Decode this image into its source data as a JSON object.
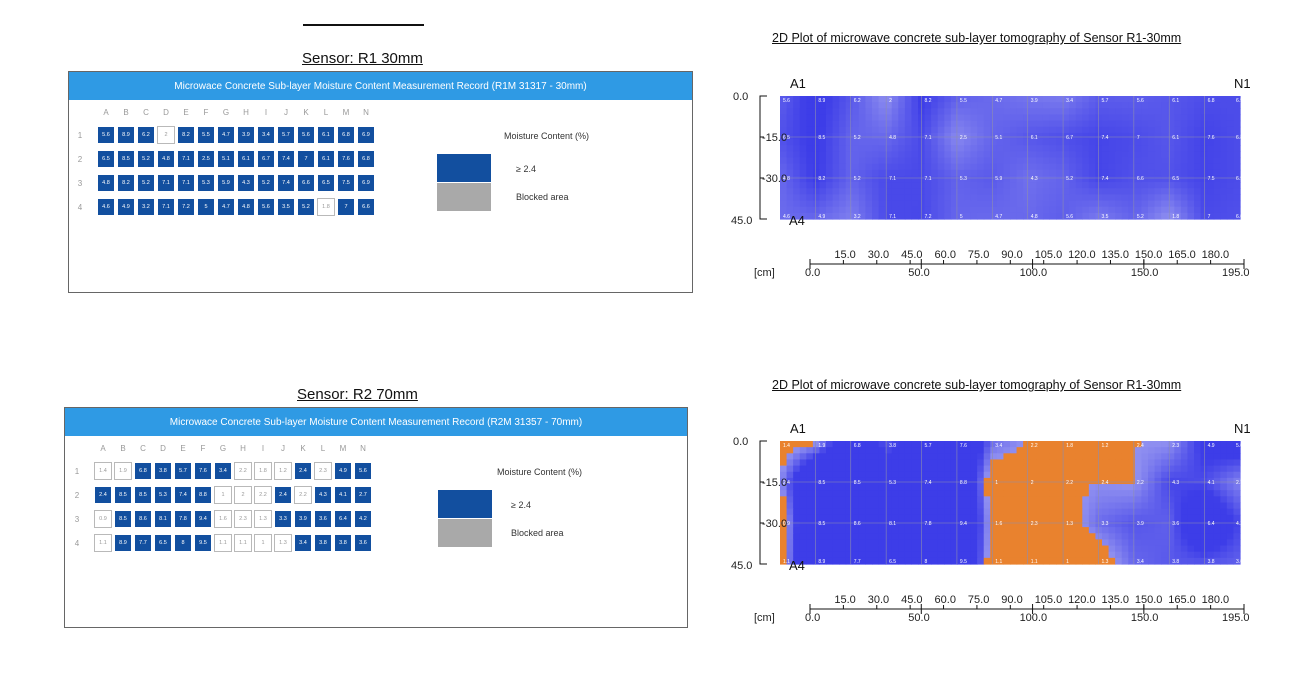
{
  "colors": {
    "header_blue": "#2f9ae4",
    "wet_cell": "#124f9f",
    "blocked_gray": "#a9a9a9",
    "plot_blue": "#3d3de8",
    "plot_light": "#8f8ff0",
    "plot_orange": "#e9822e"
  },
  "columns": [
    "A",
    "B",
    "C",
    "D",
    "E",
    "F",
    "G",
    "H",
    "I",
    "J",
    "K",
    "L",
    "M",
    "N"
  ],
  "rows": [
    "1",
    "2",
    "3",
    "4"
  ],
  "panels": [
    {
      "sensor_title": "Sensor: R1 30mm",
      "header": "Microwace Concrete Sub-layer Moisture Content Measurement Record (R1M 31317 - 30mm)",
      "legend_title": "Moisture Content (%)",
      "legend_ge": "≥ 2.4",
      "legend_blocked": "Blocked area",
      "cells": [
        [
          "5.6",
          "8.9",
          "6.2",
          "2",
          "8.2",
          "5.5",
          "4.7",
          "3.9",
          "3.4",
          "5.7",
          "5.6",
          "6.1",
          "6.8",
          "6.9"
        ],
        [
          "6.5",
          "8.5",
          "5.2",
          "4.8",
          "7.1",
          "2.5",
          "5.1",
          "6.1",
          "6.7",
          "7.4",
          "7",
          "6.1",
          "7.6",
          "6.8"
        ],
        [
          "4.8",
          "8.2",
          "5.2",
          "7.1",
          "7.1",
          "5.3",
          "5.9",
          "4.3",
          "5.2",
          "7.4",
          "6.6",
          "6.5",
          "7.5",
          "6.9"
        ],
        [
          "4.6",
          "4.9",
          "3.2",
          "7.1",
          "7.2",
          "5",
          "4.7",
          "4.8",
          "5.6",
          "3.5",
          "5.2",
          "1.8",
          "7",
          "6.6"
        ]
      ]
    },
    {
      "sensor_title": "Sensor: R2 70mm",
      "header": "Microwace Concrete Sub-layer Moisture Content Measurement Record (R2M 31357 - 70mm)",
      "legend_title": "Moisture Content (%)",
      "legend_ge": "≥ 2.4",
      "legend_blocked": "Blocked area",
      "cells": [
        [
          "1.4",
          "1.9",
          "6.8",
          "3.8",
          "5.7",
          "7.6",
          "3.4",
          "2.2",
          "1.8",
          "1.2",
          "2.4",
          "2.3",
          "4.9",
          "5.6"
        ],
        [
          "2.4",
          "8.5",
          "8.5",
          "5.3",
          "7.4",
          "8.8",
          "1",
          "2",
          "2.2",
          "2.4",
          "2.2",
          "4.3",
          "4.1",
          "2.7"
        ],
        [
          "0.9",
          "8.5",
          "8.6",
          "8.1",
          "7.8",
          "9.4",
          "1.6",
          "2.3",
          "1.3",
          "3.3",
          "3.9",
          "3.6",
          "6.4",
          "4.2"
        ],
        [
          "1.1",
          "8.9",
          "7.7",
          "6.5",
          "8",
          "9.5",
          "1.1",
          "1.1",
          "1",
          "1.3",
          "3.4",
          "3.8",
          "3.8",
          "3.6"
        ]
      ]
    }
  ],
  "plots": [
    {
      "title": "2D Plot of microwave concrete sub-layer tomography of Sensor R1-30mm",
      "corner_tl": "A1",
      "corner_tr": "N1",
      "corner_bl": "A4",
      "y_ticks": [
        "0.0",
        "-15.0",
        "-30.0",
        "45.0"
      ],
      "x_ticks_top": [
        "15.0",
        "30.0",
        "45.0",
        "60.0",
        "75.0",
        "90.0",
        "105.0",
        "120.0",
        "135.0",
        "150.0",
        "165.0",
        "180.0"
      ],
      "x_ticks_bottom": [
        "0.0",
        "50.0",
        "100.0",
        "150.0",
        "195.0"
      ],
      "unit": "[cm]"
    },
    {
      "title": "2D Plot of microwave concrete sub-layer tomography of Sensor R1-30mm",
      "corner_tl": "A1",
      "corner_tr": "N1",
      "corner_bl": "A4",
      "y_ticks": [
        "0.0",
        "-15.0",
        "-30.0",
        "45.0"
      ],
      "x_ticks_top": [
        "15.0",
        "30.0",
        "45.0",
        "60.0",
        "75.0",
        "90.0",
        "105.0",
        "120.0",
        "135.0",
        "150.0",
        "165.0",
        "180.0"
      ],
      "x_ticks_bottom": [
        "0.0",
        "50.0",
        "100.0",
        "150.0",
        "195.0"
      ],
      "unit": "[cm]"
    }
  ]
}
